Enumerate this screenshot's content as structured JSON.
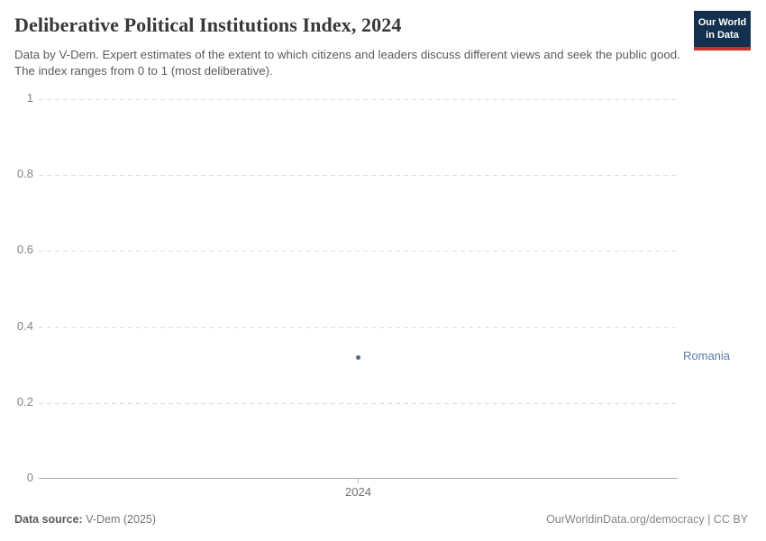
{
  "header": {
    "title": "Deliberative Political Institutions Index, 2024",
    "subtitle": "Data by V-Dem. Expert estimates of the extent to which citizens and leaders discuss different views and seek the public good. The index ranges from 0 to 1 (most deliberative).",
    "logo": {
      "line1": "Our World",
      "line2": "in Data",
      "bg_color": "#13304e",
      "stripe_color": "#c5332b"
    }
  },
  "chart_data": {
    "type": "scatter",
    "title": "Deliberative Political Institutions Index, 2024",
    "x": [
      2024
    ],
    "series": [
      {
        "name": "Romania",
        "values": [
          0.32
        ],
        "color": "#4c6a9c"
      }
    ],
    "xlabel": "",
    "ylabel": "",
    "ylim": [
      0,
      1
    ],
    "yticks": [
      "0",
      "0.2",
      "0.4",
      "0.6",
      "0.8",
      "1"
    ],
    "xticks": [
      "2024"
    ],
    "grid": "horizontal-dashed",
    "gridline_color": "#dcdcdc",
    "axis_color": "#a5a5a5",
    "tick_label_color": "#848484",
    "entity_label": "Romania",
    "entity_label_color": "#5b7bab",
    "legend_position": "entity-label-right-of-plot"
  },
  "footer": {
    "source_label": "Data source:",
    "source_value": " V-Dem (2025)",
    "link": "OurWorldinData.org/democracy",
    "separator": " | ",
    "license": "CC BY"
  }
}
